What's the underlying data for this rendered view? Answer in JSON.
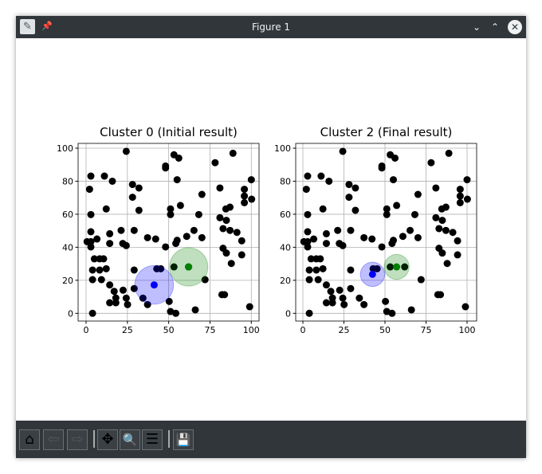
{
  "window": {
    "title": "Figure 1",
    "icons": [
      "app-icon",
      "pin-icon",
      "minimize-icon",
      "maximize-icon",
      "close-icon"
    ]
  },
  "toolbar": {
    "buttons": [
      {
        "name": "home",
        "glyph": "⌂"
      },
      {
        "name": "back",
        "glyph": "⇦"
      },
      {
        "name": "forward",
        "glyph": "⇨"
      },
      {
        "name": "pan",
        "glyph": "✥"
      },
      {
        "name": "zoom",
        "glyph": "🔍"
      },
      {
        "name": "configure-subplots",
        "glyph": "☰"
      },
      {
        "name": "save",
        "glyph": "💾"
      }
    ]
  },
  "chart_data": [
    {
      "type": "scatter",
      "title": "Cluster 0 (Initial result)",
      "xlim": [
        -5,
        105
      ],
      "ylim": [
        -5,
        103
      ],
      "xticks": [
        0,
        25,
        50,
        75,
        100
      ],
      "yticks": [
        0,
        20,
        40,
        60,
        80,
        100
      ],
      "grid": true,
      "clusters": [
        {
          "color": "#0000ff",
          "center": [
            41.2,
            17.2
          ],
          "radius": 11.7
        },
        {
          "color": "#008000",
          "center": [
            62.1,
            28.1
          ],
          "radius": 11.6
        }
      ]
    },
    {
      "type": "scatter",
      "title": "Cluster 2 (Final result)",
      "xlim": [
        -5,
        105
      ],
      "ylim": [
        -5,
        103
      ],
      "xticks": [
        0,
        25,
        50,
        75,
        100
      ],
      "yticks": [
        0,
        20,
        40,
        60,
        80,
        100
      ],
      "grid": true,
      "clusters": [
        {
          "color": "#0000ff",
          "center": [
            42.4,
            23.6
          ],
          "radius": 7.4
        },
        {
          "color": "#008000",
          "center": [
            57.1,
            28.1
          ],
          "radius": 7.6
        }
      ]
    }
  ],
  "points": [
    [
      24.3,
      98.1
    ],
    [
      53.2,
      96
    ],
    [
      56.1,
      94
    ],
    [
      88.9,
      96.9
    ],
    [
      78.1,
      91.2
    ],
    [
      48.1,
      89.2
    ],
    [
      48.1,
      88
    ],
    [
      2.9,
      83.1
    ],
    [
      11.1,
      83.1
    ],
    [
      15.9,
      80
    ],
    [
      55.1,
      80.9
    ],
    [
      100,
      80.9
    ],
    [
      2.1,
      75.1
    ],
    [
      28.1,
      78
    ],
    [
      32,
      75.9
    ],
    [
      81,
      75.9
    ],
    [
      95.8,
      75.1
    ],
    [
      70.1,
      72
    ],
    [
      95.8,
      71
    ],
    [
      28.1,
      70.3
    ],
    [
      100.2,
      69.1
    ],
    [
      95.8,
      67
    ],
    [
      57.1,
      65.3
    ],
    [
      12.2,
      63.2
    ],
    [
      51.1,
      63.2
    ],
    [
      32,
      62.4
    ],
    [
      84.6,
      63.2
    ],
    [
      87.1,
      64.3
    ],
    [
      2.9,
      59.8
    ],
    [
      51.1,
      59.8
    ],
    [
      68.2,
      59.8
    ],
    [
      81,
      57.9
    ],
    [
      84.9,
      56.3
    ],
    [
      2.9,
      49.4
    ],
    [
      14.3,
      48.2
    ],
    [
      21.2,
      50.2
    ],
    [
      29.1,
      50.2
    ],
    [
      65.3,
      50.2
    ],
    [
      82.9,
      51.3
    ],
    [
      87.1,
      50.2
    ],
    [
      91.3,
      49
    ],
    [
      60.9,
      46.6
    ],
    [
      37.2,
      45.8
    ],
    [
      42.1,
      45
    ],
    [
      70.1,
      45.8
    ],
    [
      55.1,
      44.2
    ],
    [
      54.3,
      42.3
    ],
    [
      94.2,
      43.9
    ],
    [
      0.6,
      43.4
    ],
    [
      2.9,
      43.4
    ],
    [
      6.6,
      45
    ],
    [
      2.9,
      40.2
    ],
    [
      14.3,
      42.3
    ],
    [
      22.2,
      42.3
    ],
    [
      24.3,
      41
    ],
    [
      48.1,
      40.2
    ],
    [
      82.9,
      39.4
    ],
    [
      84.9,
      36.5
    ],
    [
      94.2,
      35.4
    ],
    [
      87.9,
      30.2
    ],
    [
      5,
      33
    ],
    [
      8.2,
      33
    ],
    [
      10.6,
      33
    ],
    [
      3.9,
      26.2
    ],
    [
      8.2,
      26.2
    ],
    [
      12.2,
      27
    ],
    [
      29.1,
      26.2
    ],
    [
      42.8,
      27
    ],
    [
      45.2,
      27
    ],
    [
      53.2,
      28.1
    ],
    [
      62,
      28.1
    ],
    [
      72,
      20.4
    ],
    [
      3.9,
      20.4
    ],
    [
      9.3,
      20.4
    ],
    [
      14.3,
      17.2
    ],
    [
      17,
      13.3
    ],
    [
      22.4,
      14
    ],
    [
      29.1,
      15
    ],
    [
      34.4,
      9.2
    ],
    [
      37.2,
      5.3
    ],
    [
      18,
      9.3
    ],
    [
      14.3,
      6.4
    ],
    [
      18,
      6.4
    ],
    [
      24.3,
      9.2
    ],
    [
      25.1,
      5.3
    ],
    [
      50.3,
      7.2
    ],
    [
      51.1,
      1.1
    ],
    [
      54.3,
      0
    ],
    [
      66.1,
      2.1
    ],
    [
      82.2,
      11.3
    ],
    [
      83.8,
      11.3
    ],
    [
      99,
      4
    ],
    [
      3.9,
      0
    ]
  ]
}
